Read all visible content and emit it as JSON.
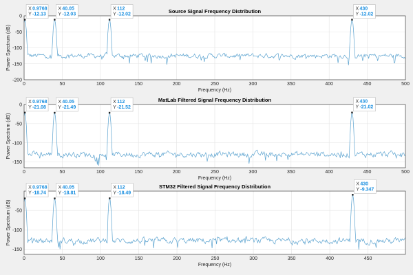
{
  "colors": {
    "background": "#f0f0f0",
    "line": "#5aa2cf",
    "grid": "#e3e3e3",
    "datatip_value": "#1a8fe0"
  },
  "chart_data": [
    {
      "type": "line",
      "title": "Source Signal Frequency Distribution",
      "xlabel": "Frequency (Hz)",
      "ylabel": "Power Spectrum (dB)",
      "xlim": [
        0,
        500
      ],
      "ylim": [
        -200,
        0
      ],
      "xticks": [
        0,
        50,
        100,
        150,
        200,
        250,
        300,
        350,
        400,
        450,
        500
      ],
      "yticks": [
        -200,
        -150,
        -100,
        -50,
        0
      ],
      "grid": true,
      "noise_floor_db": -125,
      "datatips": [
        {
          "x": "0.9768",
          "y": "-12.13"
        },
        {
          "x": "40.05",
          "y": "-12.03"
        },
        {
          "x": "112",
          "y": "-12.02"
        },
        {
          "x": "430",
          "y": "-12.02"
        }
      ]
    },
    {
      "type": "line",
      "title": "MatLab Filtered Signal Frequency Distribution",
      "xlabel": "Frequency (Hz)",
      "ylabel": "Power Spectrum (dB)",
      "xlim": [
        0,
        500
      ],
      "ylim": [
        -165,
        0
      ],
      "xticks": [
        0,
        50,
        100,
        150,
        200,
        250,
        300,
        350,
        400,
        450,
        500
      ],
      "yticks": [
        -150,
        -100,
        -50,
        0
      ],
      "grid": true,
      "noise_floor_db": -130,
      "datatips": [
        {
          "x": "0.9768",
          "y": "-21.08"
        },
        {
          "x": "40.05",
          "y": "-21.49"
        },
        {
          "x": "112",
          "y": "-21.52"
        },
        {
          "x": "430",
          "y": "-21.02"
        }
      ]
    },
    {
      "type": "line",
      "title": "STM32 Filtered Signal Frequency Distribution",
      "xlabel": "Frequency (Hz)",
      "ylabel": "Power Spectrum (dB)",
      "xlim": [
        0,
        499
      ],
      "ylim": [
        -163,
        0
      ],
      "xticks": [
        0,
        50,
        100,
        150,
        200,
        250,
        300,
        350,
        400,
        450
      ],
      "yticks": [
        -150,
        -100,
        -50
      ],
      "grid": true,
      "noise_floor_db": -128,
      "datatips": [
        {
          "x": "0.9768",
          "y": "-18.74"
        },
        {
          "x": "40.05",
          "y": "-18.81"
        },
        {
          "x": "112",
          "y": "-18.49"
        },
        {
          "x": "430",
          "y": "-9.347"
        }
      ]
    }
  ]
}
